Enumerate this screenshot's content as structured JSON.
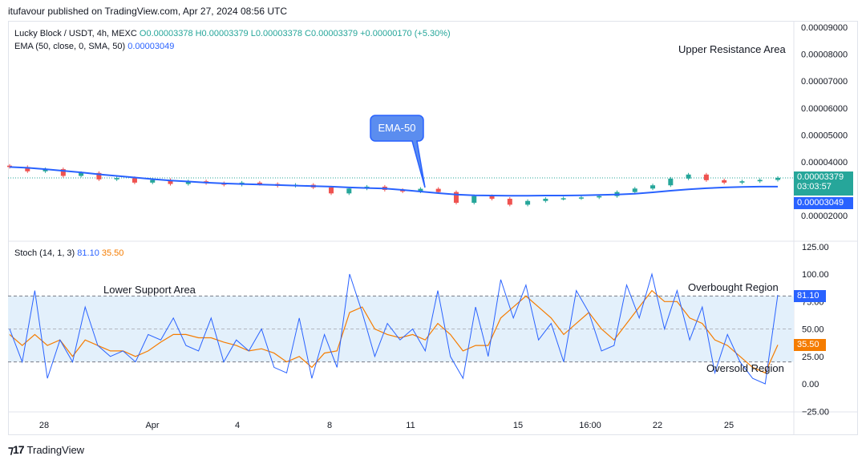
{
  "header": {
    "publisher_line": "itufavour published on TradingView.com, Apr 27, 2024 08:56 UTC"
  },
  "legend": {
    "symbol": "Lucky Block / USDT, 4h, MEXC",
    "ohlc": "O0.00003378 H0.00003379 L0.00003378 C0.00003379 +0.00000170 (+5.30%)",
    "ema_label": "EMA (50, close, 0, SMA, 50)",
    "ema_value": "0.00003049",
    "stoch_label": "Stoch (14, 1, 3)",
    "stoch_k": "81.10",
    "stoch_d": "35.50"
  },
  "annotations": {
    "upper_resistance": "Upper Resistance Area",
    "lower_support": "Lower Support Area",
    "ema_callout": "EMA-50",
    "overbought": "Overbought Region",
    "oversold": "Oversold Region"
  },
  "price_axis": {
    "ticks": [
      "0.00009000",
      "0.00008000",
      "0.00007000",
      "0.00006000",
      "0.00005000",
      "0.00004000",
      "0.00002000"
    ],
    "last_price": "0.00003379",
    "countdown": "03:03:57",
    "ema_price": "0.00003049"
  },
  "stoch_axis": {
    "ticks": [
      "125.00",
      "100.00",
      "75.00",
      "50.00",
      "25.00",
      "0.00",
      "−25.00"
    ],
    "k_box": "81.10",
    "d_box": "35.50"
  },
  "time_axis": {
    "labels": [
      "28",
      "Apr",
      "4",
      "8",
      "11",
      "15",
      "16:00",
      "22",
      "25"
    ]
  },
  "footer": {
    "brand": "TradingView"
  },
  "colors": {
    "up": "#26a69a",
    "down": "#ef5350",
    "ema": "#2962ff",
    "stoch_k": "#2962ff",
    "stoch_d": "#f57c00",
    "band": "#e3f0fb"
  },
  "chart_data": [
    {
      "type": "candlestick",
      "title": "Lucky Block / USDT, 4h, MEXC",
      "ylim": [
        1.5e-05,
        9.05e-05
      ],
      "series": [
        {
          "name": "Close",
          "values": [
            3.78e-05,
            3.62e-05,
            3.7e-05,
            3.45e-05,
            3.56e-05,
            3.32e-05,
            3.37e-05,
            3.2e-05,
            3.3e-05,
            3.15e-05,
            3.25e-05,
            3.18e-05,
            3.12e-05,
            3.2e-05,
            3.15e-05,
            3.08e-05,
            3.12e-05,
            3.02e-05,
            2.8e-05,
            2.98e-05,
            3.05e-05,
            2.93e-05,
            2.87e-05,
            2.97e-05,
            2.85e-05,
            2.45e-05,
            2.7e-05,
            2.6e-05,
            2.38e-05,
            2.52e-05,
            2.6e-05,
            2.62e-05,
            2.65e-05,
            2.7e-05,
            2.85e-05,
            2.98e-05,
            3.1e-05,
            3.35e-05,
            3.5e-05,
            3.29e-05,
            3.2e-05,
            3.25e-05,
            3.3e-05,
            3.38e-05
          ]
        },
        {
          "name": "EMA (50, close, 0, SMA, 50)",
          "values": [
            3.78e-05,
            3.75e-05,
            3.7e-05,
            3.64e-05,
            3.58e-05,
            3.51e-05,
            3.45e-05,
            3.39e-05,
            3.33e-05,
            3.28e-05,
            3.24e-05,
            3.2e-05,
            3.17e-05,
            3.15e-05,
            3.13e-05,
            3.11e-05,
            3.09e-05,
            3.07e-05,
            3.05e-05,
            3.02e-05,
            3e-05,
            2.98e-05,
            2.93e-05,
            2.87e-05,
            2.81e-05,
            2.76e-05,
            2.73e-05,
            2.72e-05,
            2.71e-05,
            2.71e-05,
            2.72e-05,
            2.72e-05,
            2.73e-05,
            2.74e-05,
            2.76e-05,
            2.79e-05,
            2.84e-05,
            2.9e-05,
            2.95e-05,
            2.99e-05,
            3.02e-05,
            3.04e-05,
            3.05e-05,
            3.05e-05
          ]
        }
      ]
    },
    {
      "type": "line",
      "title": "Stoch (14, 1, 3)",
      "ylim": [
        -25,
        125
      ],
      "bands": {
        "overbought": 80,
        "middle": 50,
        "oversold": 20
      },
      "series": [
        {
          "name": "%K",
          "values": [
            50,
            20,
            85,
            5,
            40,
            20,
            70,
            35,
            25,
            30,
            20,
            45,
            40,
            60,
            35,
            30,
            60,
            20,
            40,
            30,
            50,
            15,
            10,
            60,
            5,
            45,
            15,
            100,
            65,
            25,
            55,
            40,
            50,
            30,
            85,
            25,
            5,
            70,
            25,
            95,
            60,
            90,
            40,
            55,
            20,
            85,
            65,
            30,
            35,
            90,
            60,
            100,
            50,
            85,
            40,
            70,
            10,
            45,
            20,
            5,
            0,
            81
          ]
        },
        {
          "name": "%D",
          "values": [
            45,
            35,
            45,
            35,
            40,
            25,
            40,
            35,
            30,
            30,
            25,
            30,
            38,
            45,
            45,
            42,
            42,
            38,
            35,
            30,
            32,
            28,
            20,
            25,
            15,
            28,
            30,
            65,
            70,
            50,
            45,
            42,
            45,
            40,
            55,
            45,
            30,
            35,
            35,
            60,
            70,
            80,
            70,
            60,
            45,
            55,
            65,
            50,
            40,
            55,
            70,
            85,
            75,
            75,
            60,
            55,
            40,
            35,
            25,
            15,
            10,
            35.5
          ]
        }
      ]
    }
  ]
}
